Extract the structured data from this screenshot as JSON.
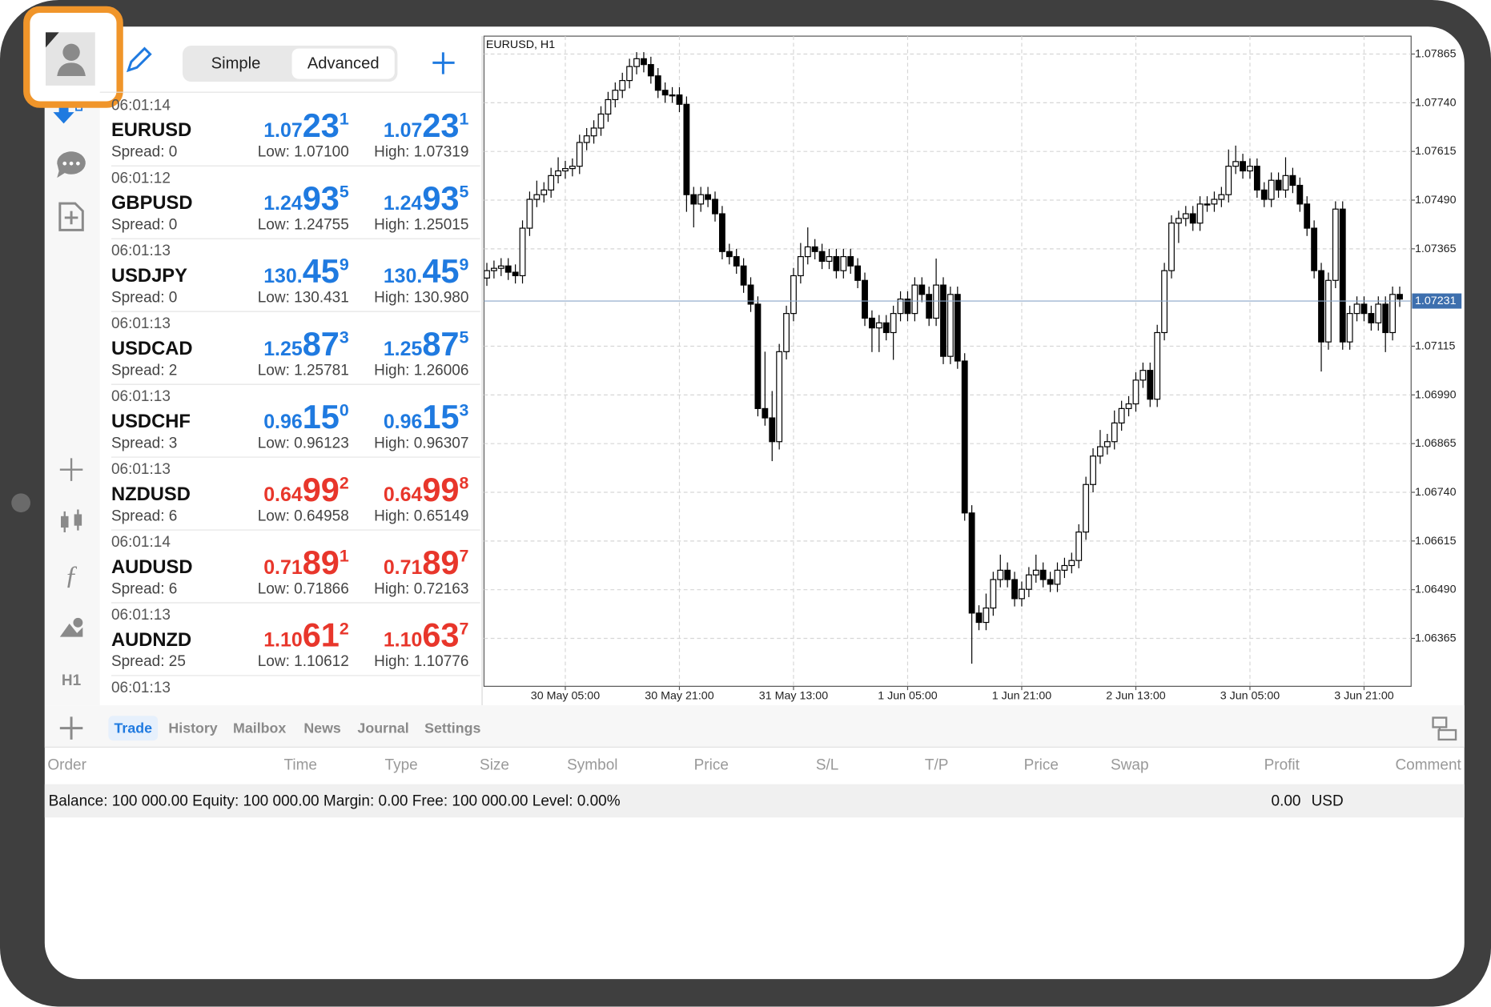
{
  "toolbar": {
    "modes": [
      "Simple",
      "Advanced"
    ]
  },
  "quotes": [
    {
      "time": "06:01:14",
      "symbol": "EURUSD",
      "spread": "Spread: 0",
      "bid": [
        "1.07",
        "23",
        "1"
      ],
      "ask": [
        "1.07",
        "23",
        "1"
      ],
      "low": "Low: 1.07100",
      "high": "High: 1.07319",
      "color": "#1f7ae0"
    },
    {
      "time": "06:01:12",
      "symbol": "GBPUSD",
      "spread": "Spread: 0",
      "bid": [
        "1.24",
        "93",
        "5"
      ],
      "ask": [
        "1.24",
        "93",
        "5"
      ],
      "low": "Low: 1.24755",
      "high": "High: 1.25015",
      "color": "#1f7ae0"
    },
    {
      "time": "06:01:13",
      "symbol": "USDJPY",
      "spread": "Spread: 0",
      "bid": [
        "130.",
        "45",
        "9"
      ],
      "ask": [
        "130.",
        "45",
        "9"
      ],
      "low": "Low: 130.431",
      "high": "High: 130.980",
      "color": "#1f7ae0"
    },
    {
      "time": "06:01:13",
      "symbol": "USDCAD",
      "spread": "Spread: 2",
      "bid": [
        "1.25",
        "87",
        "3"
      ],
      "ask": [
        "1.25",
        "87",
        "5"
      ],
      "low": "Low: 1.25781",
      "high": "High: 1.26006",
      "color": "#1f7ae0"
    },
    {
      "time": "06:01:13",
      "symbol": "USDCHF",
      "spread": "Spread: 3",
      "bid": [
        "0.96",
        "15",
        "0"
      ],
      "ask": [
        "0.96",
        "15",
        "3"
      ],
      "low": "Low: 0.96123",
      "high": "High: 0.96307",
      "color": "#1f7ae0"
    },
    {
      "time": "06:01:13",
      "symbol": "NZDUSD",
      "spread": "Spread: 6",
      "bid": [
        "0.64",
        "99",
        "2"
      ],
      "ask": [
        "0.64",
        "99",
        "8"
      ],
      "low": "Low: 0.64958",
      "high": "High: 0.65149",
      "color": "#e8362b"
    },
    {
      "time": "06:01:14",
      "symbol": "AUDUSD",
      "spread": "Spread: 6",
      "bid": [
        "0.71",
        "89",
        "1"
      ],
      "ask": [
        "0.71",
        "89",
        "7"
      ],
      "low": "Low: 0.71866",
      "high": "High: 0.72163",
      "color": "#e8362b"
    },
    {
      "time": "06:01:13",
      "symbol": "AUDNZD",
      "spread": "Spread: 25",
      "bid": [
        "1.10",
        "61",
        "2"
      ],
      "ask": [
        "1.10",
        "63",
        "7"
      ],
      "low": "Low: 1.10612",
      "high": "High: 1.10776",
      "color": "#e8362b"
    },
    {
      "time": "06:01:13"
    }
  ],
  "side_tools": {
    "timeframe": "H1"
  },
  "tabs": [
    "Trade",
    "History",
    "Mailbox",
    "News",
    "Journal",
    "Settings"
  ],
  "columns": [
    "Order",
    "Time",
    "Type",
    "Size",
    "Symbol",
    "Price",
    "S/L",
    "T/P",
    "Price",
    "Swap",
    "Profit",
    "Comment"
  ],
  "summary": {
    "text": "Balance: 100 000.00 Equity: 100 000.00 Margin: 0.00 Free: 100 000.00 Level: 0.00%",
    "profit": "0.00",
    "currency": "USD"
  },
  "chart_data": {
    "type": "candlestick",
    "title": "EURUSD, H1",
    "categories": [
      null,
      null,
      null,
      null,
      null,
      null,
      null,
      null,
      null,
      null,
      null,
      "30 May 05:00",
      null,
      null,
      null,
      null,
      null,
      null,
      null,
      null,
      null,
      null,
      null,
      null,
      null,
      null,
      null,
      "30 May 21:00",
      null,
      null,
      null,
      null,
      null,
      null,
      null,
      null,
      null,
      null,
      null,
      null,
      null,
      null,
      null,
      "31 May 13:00",
      null,
      null,
      null,
      null,
      null,
      null,
      null,
      null,
      null,
      null,
      null,
      null,
      null,
      null,
      null,
      "1 Jun 05:00",
      null,
      null,
      null,
      null,
      null,
      null,
      null,
      null,
      null,
      null,
      null,
      null,
      null,
      null,
      null,
      "1 Jun 21:00",
      null,
      null,
      null,
      null,
      null,
      null,
      null,
      null,
      null,
      null,
      null,
      null,
      null,
      null,
      null,
      "2 Jun 13:00",
      null,
      null,
      null,
      null,
      null,
      null,
      null,
      null,
      null,
      null,
      null,
      null,
      null,
      null,
      null,
      "3 Jun 05:00",
      null,
      null,
      null,
      null,
      null,
      null,
      null,
      null,
      null,
      null,
      null,
      null,
      null,
      null,
      null,
      "3 Jun 21:00",
      null,
      null,
      null,
      null,
      null
    ],
    "candles": [
      [
        1.0729,
        1.07329,
        1.0727,
        1.07309
      ],
      [
        1.07309,
        1.07335,
        1.07289,
        1.07315
      ],
      [
        1.07315,
        1.07341,
        1.07295,
        1.07321
      ],
      [
        1.07321,
        1.07341,
        1.07285,
        1.07305
      ],
      [
        1.07305,
        1.07325,
        1.07276,
        1.07296
      ],
      [
        1.07296,
        1.07438,
        1.07276,
        1.07418
      ],
      [
        1.07418,
        1.07512,
        1.07398,
        1.07492
      ],
      [
        1.07492,
        1.0754,
        1.07472,
        1.07504
      ],
      [
        1.07504,
        1.07536,
        1.07484,
        1.07516
      ],
      [
        1.07516,
        1.07573,
        1.07496,
        1.07553
      ],
      [
        1.07553,
        1.076,
        1.07533,
        1.07565
      ],
      [
        1.07565,
        1.07591,
        1.07545,
        1.07571
      ],
      [
        1.07571,
        1.07597,
        1.07551,
        1.07577
      ],
      [
        1.07577,
        1.07658,
        1.07557,
        1.07638
      ],
      [
        1.07638,
        1.07675,
        1.07618,
        1.07655
      ],
      [
        1.07655,
        1.07695,
        1.07635,
        1.07675
      ],
      [
        1.07675,
        1.07731,
        1.07655,
        1.07711
      ],
      [
        1.07711,
        1.07768,
        1.07691,
        1.07748
      ],
      [
        1.07748,
        1.07792,
        1.07728,
        1.07772
      ],
      [
        1.07772,
        1.07817,
        1.07752,
        1.07797
      ],
      [
        1.07797,
        1.07853,
        1.07777,
        1.07833
      ],
      [
        1.07833,
        1.0787,
        1.07813,
        1.07853
      ],
      [
        1.07853,
        1.0787,
        1.07818,
        1.07838
      ],
      [
        1.07838,
        1.07858,
        1.07789,
        1.07809
      ],
      [
        1.07809,
        1.07829,
        1.07752,
        1.07772
      ],
      [
        1.07772,
        1.07792,
        1.0774,
        1.0776
      ],
      [
        1.0776,
        1.0778,
        1.0774,
        1.0776
      ],
      [
        1.0776,
        1.0778,
        1.07716,
        1.07736
      ],
      [
        1.07736,
        1.07756,
        1.0746,
        1.07504
      ],
      [
        1.07504,
        1.07524,
        1.0742,
        1.0748
      ],
      [
        1.0748,
        1.07524,
        1.0746,
        1.07504
      ],
      [
        1.07504,
        1.07524,
        1.07472,
        1.07492
      ],
      [
        1.07492,
        1.07512,
        1.07435,
        1.07455
      ],
      [
        1.07455,
        1.07475,
        1.07338,
        1.07358
      ],
      [
        1.07358,
        1.07378,
        1.07325,
        1.07345
      ],
      [
        1.07345,
        1.07365,
        1.07301,
        1.07321
      ],
      [
        1.07321,
        1.07341,
        1.07252,
        1.07272
      ],
      [
        1.07272,
        1.07292,
        1.07203,
        1.07223
      ],
      [
        1.07223,
        1.07243,
        1.06935,
        1.06955
      ],
      [
        1.06955,
        1.07101,
        1.06911,
        1.06931
      ],
      [
        1.06931,
        1.07,
        1.0682,
        1.0687
      ],
      [
        1.0687,
        1.07121,
        1.0685,
        1.07101
      ],
      [
        1.07101,
        1.07219,
        1.07081,
        1.07199
      ],
      [
        1.07199,
        1.07316,
        1.07179,
        1.07296
      ],
      [
        1.07296,
        1.0738,
        1.07276,
        1.07345
      ],
      [
        1.07345,
        1.0742,
        1.07325,
        1.0737
      ],
      [
        1.0737,
        1.0739,
        1.07338,
        1.07358
      ],
      [
        1.07358,
        1.07378,
        1.07313,
        1.07333
      ],
      [
        1.07333,
        1.07365,
        1.07313,
        1.07345
      ],
      [
        1.07345,
        1.07365,
        1.07289,
        1.07309
      ],
      [
        1.07309,
        1.07365,
        1.07289,
        1.07345
      ],
      [
        1.07345,
        1.07365,
        1.07301,
        1.07321
      ],
      [
        1.07321,
        1.07341,
        1.07264,
        1.07284
      ],
      [
        1.07284,
        1.07304,
        1.07167,
        1.07187
      ],
      [
        1.07187,
        1.07207,
        1.071,
        1.07162
      ],
      [
        1.07162,
        1.07195,
        1.071,
        1.07175
      ],
      [
        1.07175,
        1.07195,
        1.0713,
        1.0715
      ],
      [
        1.0715,
        1.07219,
        1.0708,
        1.07199
      ],
      [
        1.07199,
        1.07256,
        1.07179,
        1.07236
      ],
      [
        1.07236,
        1.07256,
        1.07179,
        1.07199
      ],
      [
        1.07199,
        1.07292,
        1.07179,
        1.07272
      ],
      [
        1.07272,
        1.07292,
        1.07228,
        1.07248
      ],
      [
        1.07248,
        1.07268,
        1.07167,
        1.07187
      ],
      [
        1.07187,
        1.0734,
        1.07167,
        1.07272
      ],
      [
        1.07272,
        1.07292,
        1.07069,
        1.07089
      ],
      [
        1.07089,
        1.07268,
        1.07069,
        1.07248
      ],
      [
        1.07248,
        1.07268,
        1.07057,
        1.07077
      ],
      [
        1.07077,
        1.07097,
        1.06667,
        1.06687
      ],
      [
        1.06687,
        1.06707,
        1.063,
        1.0643
      ],
      [
        1.0643,
        1.0645,
        1.06386,
        1.06406
      ],
      [
        1.06406,
        1.0648,
        1.06386,
        1.06443
      ],
      [
        1.06443,
        1.06536,
        1.06423,
        1.06516
      ],
      [
        1.06516,
        1.0658,
        1.06496,
        1.0654
      ],
      [
        1.0654,
        1.0656,
        1.06496,
        1.06516
      ],
      [
        1.06516,
        1.06536,
        1.06447,
        1.06467
      ],
      [
        1.06467,
        1.06511,
        1.06447,
        1.06491
      ],
      [
        1.06491,
        1.06548,
        1.06471,
        1.06528
      ],
      [
        1.06528,
        1.0658,
        1.06508,
        1.0654
      ],
      [
        1.0654,
        1.0656,
        1.06496,
        1.06516
      ],
      [
        1.06516,
        1.06536,
        1.06484,
        1.06504
      ],
      [
        1.06504,
        1.0656,
        1.06484,
        1.0654
      ],
      [
        1.0654,
        1.06572,
        1.0652,
        1.06552
      ],
      [
        1.06552,
        1.06585,
        1.06532,
        1.06565
      ],
      [
        1.06565,
        1.06658,
        1.06545,
        1.06638
      ],
      [
        1.06638,
        1.0678,
        1.06618,
        1.0676
      ],
      [
        1.0676,
        1.06853,
        1.0674,
        1.06833
      ],
      [
        1.06833,
        1.069,
        1.06813,
        1.06857
      ],
      [
        1.06857,
        1.0689,
        1.06837,
        1.0687
      ],
      [
        1.0687,
        1.0695,
        1.0685,
        1.06918
      ],
      [
        1.06918,
        1.06975,
        1.06898,
        1.06955
      ],
      [
        1.06955,
        1.06987,
        1.06935,
        1.06967
      ],
      [
        1.06967,
        1.07048,
        1.06947,
        1.07028
      ],
      [
        1.07028,
        1.07073,
        1.07008,
        1.07053
      ],
      [
        1.07053,
        1.07073,
        1.06959,
        1.06979
      ],
      [
        1.06979,
        1.0717,
        1.06959,
        1.0715
      ],
      [
        1.0715,
        1.07329,
        1.0713,
        1.07309
      ],
      [
        1.07309,
        1.07451,
        1.07289,
        1.07431
      ],
      [
        1.07431,
        1.07463,
        1.0738,
        1.07443
      ],
      [
        1.07443,
        1.07475,
        1.07423,
        1.07455
      ],
      [
        1.07455,
        1.07475,
        1.07411,
        1.07431
      ],
      [
        1.07431,
        1.075,
        1.07411,
        1.0748
      ],
      [
        1.0748,
        1.075,
        1.0746,
        1.0748
      ],
      [
        1.0748,
        1.07512,
        1.0746,
        1.07492
      ],
      [
        1.07492,
        1.07524,
        1.07472,
        1.07504
      ],
      [
        1.07504,
        1.0762,
        1.07484,
        1.07577
      ],
      [
        1.07577,
        1.0763,
        1.07557,
        1.07589
      ],
      [
        1.07589,
        1.07609,
        1.07545,
        1.07565
      ],
      [
        1.07565,
        1.07597,
        1.07545,
        1.07577
      ],
      [
        1.07577,
        1.07597,
        1.07496,
        1.07516
      ],
      [
        1.07516,
        1.07536,
        1.07472,
        1.07492
      ],
      [
        1.07492,
        1.07561,
        1.07472,
        1.07541
      ],
      [
        1.07541,
        1.07561,
        1.07496,
        1.07516
      ],
      [
        1.07516,
        1.076,
        1.07496,
        1.07553
      ],
      [
        1.07553,
        1.07573,
        1.07508,
        1.07528
      ],
      [
        1.07528,
        1.07548,
        1.0746,
        1.0748
      ],
      [
        1.0748,
        1.075,
        1.07398,
        1.07418
      ],
      [
        1.07418,
        1.07438,
        1.07289,
        1.07309
      ],
      [
        1.07309,
        1.07329,
        1.0705,
        1.07126
      ],
      [
        1.07126,
        1.07304,
        1.07106,
        1.07284
      ],
      [
        1.07284,
        1.07487,
        1.07264,
        1.07467
      ],
      [
        1.07467,
        1.07487,
        1.07106,
        1.07126
      ],
      [
        1.07126,
        1.07219,
        1.07106,
        1.07199
      ],
      [
        1.07199,
        1.07243,
        1.07179,
        1.07223
      ],
      [
        1.07223,
        1.07243,
        1.07179,
        1.07199
      ],
      [
        1.07199,
        1.07219,
        1.07155,
        1.07175
      ],
      [
        1.07175,
        1.07243,
        1.07155,
        1.07223
      ],
      [
        1.07223,
        1.07243,
        1.071,
        1.0715
      ],
      [
        1.0715,
        1.07268,
        1.0713,
        1.07248
      ],
      [
        1.07248,
        1.07268,
        1.07216,
        1.07236
      ]
    ],
    "current_price": 1.07231,
    "ylim": [
      1.06242,
      1.07911
    ],
    "yticks": [
      1.07865,
      {
        "value": 1.0774,
        "label": "1.07740"
      },
      1.07615,
      {
        "value": 1.0749,
        "label": "1.07490"
      },
      1.07365,
      1.07115,
      {
        "value": 1.0699,
        "label": "1.06990"
      },
      1.06865,
      {
        "value": 1.0674,
        "label": "1.06740"
      },
      1.06615,
      {
        "value": 1.0649,
        "label": "1.06490"
      },
      1.06365
    ],
    "grid": true,
    "up_color": "#ffffff",
    "down_color": "#000000"
  }
}
